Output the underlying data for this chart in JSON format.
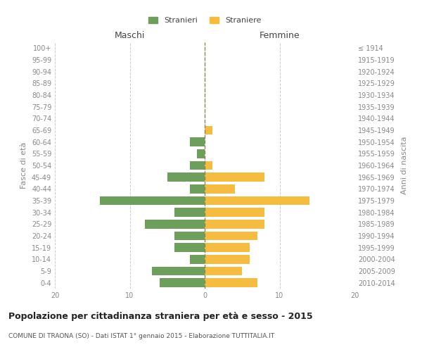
{
  "age_groups": [
    "100+",
    "95-99",
    "90-94",
    "85-89",
    "80-84",
    "75-79",
    "70-74",
    "65-69",
    "60-64",
    "55-59",
    "50-54",
    "45-49",
    "40-44",
    "35-39",
    "30-34",
    "25-29",
    "20-24",
    "15-19",
    "10-14",
    "5-9",
    "0-4"
  ],
  "birth_years": [
    "≤ 1914",
    "1915-1919",
    "1920-1924",
    "1925-1929",
    "1930-1934",
    "1935-1939",
    "1940-1944",
    "1945-1949",
    "1950-1954",
    "1955-1959",
    "1960-1964",
    "1965-1969",
    "1970-1974",
    "1975-1979",
    "1980-1984",
    "1985-1989",
    "1990-1994",
    "1995-1999",
    "2000-2004",
    "2005-2009",
    "2010-2014"
  ],
  "maschi": [
    0,
    0,
    0,
    0,
    0,
    0,
    0,
    0,
    2,
    1,
    2,
    5,
    2,
    14,
    4,
    8,
    4,
    4,
    2,
    7,
    6
  ],
  "femmine": [
    0,
    0,
    0,
    0,
    0,
    0,
    0,
    1,
    0,
    0,
    1,
    8,
    4,
    14,
    8,
    8,
    7,
    6,
    6,
    5,
    7
  ],
  "color_maschi": "#6d9e5b",
  "color_femmine": "#f5bc42",
  "background_color": "#ffffff",
  "grid_color": "#cccccc",
  "title": "Popolazione per cittadinanza straniera per età e sesso - 2015",
  "subtitle": "COMUNE DI TRAONA (SO) - Dati ISTAT 1° gennaio 2015 - Elaborazione TUTTITALIA.IT",
  "xlabel_maschi": "Maschi",
  "xlabel_femmine": "Femmine",
  "ylabel_left": "Fasce di età",
  "ylabel_right": "Anni di nascita",
  "legend_maschi": "Stranieri",
  "legend_femmine": "Straniere",
  "xlim": 20,
  "tick_color": "#888888",
  "dashed_line_color": "#888855"
}
